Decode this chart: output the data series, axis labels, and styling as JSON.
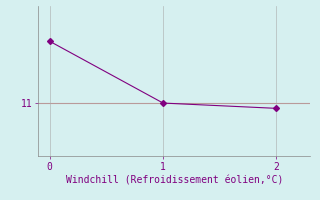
{
  "x": [
    0,
    1,
    2
  ],
  "y": [
    14.5,
    11.0,
    10.7
  ],
  "line_color": "#800080",
  "marker": "D",
  "marker_size": 3,
  "hline_y": 11.0,
  "hline_color": "#cc8888",
  "background_color": "#d6f0f0",
  "grid_color": "#aaaaaa",
  "xlabel": "Windchill (Refroidissement éolien,°C)",
  "xlabel_color": "#800080",
  "xlabel_fontsize": 7,
  "ytick_labels": [
    "11"
  ],
  "ytick_values": [
    11.0
  ],
  "xtick_values": [
    0,
    1,
    2
  ],
  "ylim": [
    8.0,
    16.5
  ],
  "xlim": [
    -0.1,
    2.3
  ],
  "tick_color": "#800080",
  "tick_fontsize": 7,
  "spine_color": "#888888",
  "linewidth": 0.8
}
